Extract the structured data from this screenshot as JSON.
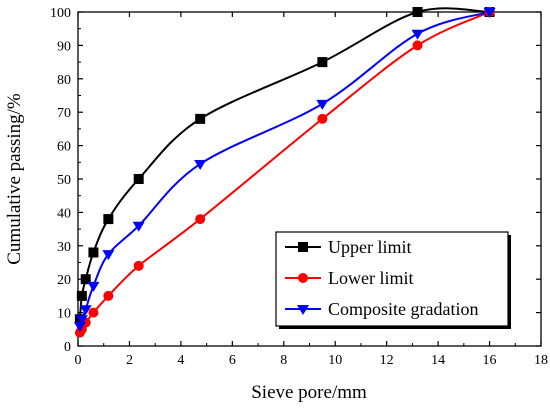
{
  "chart_data": {
    "type": "line",
    "title": "",
    "xlabel": "Sieve pore/mm",
    "ylabel": "Cumulative passing/%",
    "xlim": [
      0,
      18
    ],
    "ylim": [
      0,
      100
    ],
    "xticks": [
      0,
      2,
      4,
      6,
      8,
      10,
      12,
      14,
      16,
      18
    ],
    "yticks": [
      0,
      10,
      20,
      30,
      40,
      50,
      60,
      70,
      80,
      90,
      100
    ],
    "grid": false,
    "legend_position": "bottom-right",
    "series": [
      {
        "name": "Upper limit",
        "color": "#000000",
        "marker": "square",
        "x": [
          0.075,
          0.15,
          0.3,
          0.6,
          1.18,
          2.36,
          4.75,
          9.5,
          13.2,
          16
        ],
        "y": [
          8,
          15,
          20,
          28,
          38,
          50,
          68,
          85,
          100,
          100
        ]
      },
      {
        "name": "Lower limit",
        "color": "#ff0000",
        "marker": "circle",
        "x": [
          0.075,
          0.15,
          0.3,
          0.6,
          1.18,
          2.36,
          4.75,
          9.5,
          13.2,
          16
        ],
        "y": [
          4,
          5,
          7,
          10,
          15,
          24,
          38,
          68,
          90,
          100
        ]
      },
      {
        "name": "Composite gradation",
        "color": "#0000ff",
        "marker": "triangle-down",
        "x": [
          0.075,
          0.15,
          0.3,
          0.6,
          1.18,
          2.36,
          4.75,
          9.5,
          13.2,
          16
        ],
        "y": [
          6,
          8,
          11,
          18,
          27.5,
          36,
          54.5,
          72.5,
          93.5,
          100
        ]
      }
    ]
  }
}
